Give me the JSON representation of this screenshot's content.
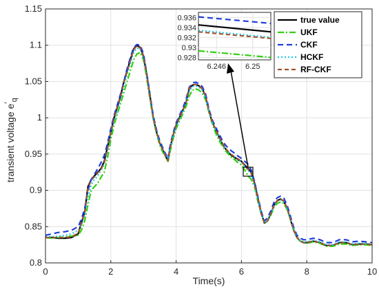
{
  "chart_data": {
    "type": "line",
    "title": "",
    "xlabel": "Time(s)",
    "ylabel": "transient voltage e′q",
    "ylabel_main": "transient voltage e",
    "ylabel_prime": "′",
    "ylabel_sub": "q",
    "xlim": [
      0,
      10
    ],
    "ylim": [
      0.8,
      1.15
    ],
    "xticks": [
      "0",
      "2",
      "4",
      "6",
      "8",
      "10"
    ],
    "yticks": [
      "0.8",
      "0.85",
      "0.9",
      "0.95",
      "1",
      "1.05",
      "1.1",
      "1.15"
    ],
    "grid": true,
    "legend_position": "top-right",
    "x": [
      0,
      0.2,
      0.4,
      0.6,
      0.8,
      1.0,
      1.1,
      1.2,
      1.3,
      1.4,
      1.5,
      1.6,
      1.7,
      1.8,
      1.9,
      2.0,
      2.1,
      2.2,
      2.3,
      2.4,
      2.5,
      2.6,
      2.7,
      2.8,
      2.9,
      3.0,
      3.1,
      3.2,
      3.3,
      3.4,
      3.5,
      3.6,
      3.7,
      3.75,
      3.8,
      3.9,
      4.0,
      4.1,
      4.2,
      4.3,
      4.4,
      4.5,
      4.6,
      4.7,
      4.8,
      4.9,
      5.0,
      5.1,
      5.2,
      5.3,
      5.4,
      5.5,
      5.6,
      5.7,
      5.8,
      5.9,
      6.0,
      6.1,
      6.2,
      6.3,
      6.4,
      6.5,
      6.6,
      6.7,
      6.8,
      6.9,
      7.0,
      7.1,
      7.2,
      7.3,
      7.4,
      7.5,
      7.6,
      7.7,
      7.8,
      7.9,
      8.0,
      8.2,
      8.4,
      8.6,
      8.8,
      9.0,
      9.2,
      9.4,
      9.6,
      9.8,
      10.0
    ],
    "series": [
      {
        "name": "true value",
        "color": "#000000",
        "dash": "",
        "values": [
          0.835,
          0.835,
          0.834,
          0.834,
          0.835,
          0.84,
          0.855,
          0.87,
          0.905,
          0.915,
          0.92,
          0.925,
          0.93,
          0.94,
          0.96,
          0.98,
          1.0,
          1.015,
          1.03,
          1.05,
          1.065,
          1.08,
          1.095,
          1.1,
          1.097,
          1.085,
          1.06,
          1.03,
          1.0,
          0.98,
          0.965,
          0.955,
          0.945,
          0.94,
          0.955,
          0.975,
          0.99,
          1.0,
          1.01,
          1.02,
          1.04,
          1.045,
          1.046,
          1.044,
          1.04,
          1.03,
          1.01,
          0.995,
          0.985,
          0.975,
          0.965,
          0.958,
          0.952,
          0.948,
          0.945,
          0.942,
          0.94,
          0.935,
          0.93,
          0.925,
          0.91,
          0.89,
          0.87,
          0.855,
          0.858,
          0.868,
          0.88,
          0.886,
          0.888,
          0.885,
          0.875,
          0.86,
          0.845,
          0.835,
          0.83,
          0.828,
          0.828,
          0.83,
          0.828,
          0.824,
          0.824,
          0.828,
          0.828,
          0.825,
          0.826,
          0.826,
          0.825
        ]
      },
      {
        "name": "UKF",
        "color": "#2ed00d",
        "dash": "9,3,2,3",
        "values": [
          0.835,
          0.834,
          0.835,
          0.836,
          0.837,
          0.838,
          0.845,
          0.858,
          0.88,
          0.9,
          0.905,
          0.91,
          0.918,
          0.925,
          0.945,
          0.97,
          0.99,
          1.005,
          1.02,
          1.035,
          1.05,
          1.065,
          1.08,
          1.088,
          1.09,
          1.08,
          1.055,
          1.025,
          0.998,
          0.978,
          0.962,
          0.952,
          0.944,
          0.94,
          0.95,
          0.97,
          0.985,
          0.995,
          1.005,
          1.015,
          1.03,
          1.038,
          1.04,
          1.038,
          1.034,
          1.025,
          1.008,
          0.993,
          0.98,
          0.97,
          0.962,
          0.955,
          0.95,
          0.945,
          0.942,
          0.938,
          0.935,
          0.928,
          0.92,
          0.915,
          0.905,
          0.885,
          0.868,
          0.856,
          0.858,
          0.866,
          0.877,
          0.882,
          0.884,
          0.882,
          0.873,
          0.86,
          0.846,
          0.836,
          0.83,
          0.828,
          0.827,
          0.829,
          0.827,
          0.823,
          0.823,
          0.826,
          0.826,
          0.824,
          0.825,
          0.825,
          0.824
        ]
      },
      {
        "name": "CKF",
        "color": "#1f3ddb",
        "dash": "8,5",
        "values": [
          0.838,
          0.84,
          0.842,
          0.843,
          0.845,
          0.85,
          0.86,
          0.875,
          0.9,
          0.915,
          0.922,
          0.93,
          0.938,
          0.948,
          0.965,
          0.985,
          1.003,
          1.018,
          1.033,
          1.05,
          1.068,
          1.083,
          1.097,
          1.101,
          1.1,
          1.088,
          1.062,
          1.032,
          1.003,
          0.983,
          0.968,
          0.958,
          0.948,
          0.943,
          0.958,
          0.978,
          0.993,
          1.003,
          1.013,
          1.025,
          1.042,
          1.048,
          1.049,
          1.047,
          1.043,
          1.033,
          1.013,
          0.998,
          0.988,
          0.979,
          0.97,
          0.963,
          0.958,
          0.954,
          0.951,
          0.947,
          0.944,
          0.94,
          0.936,
          0.928,
          0.912,
          0.892,
          0.872,
          0.858,
          0.862,
          0.872,
          0.884,
          0.89,
          0.892,
          0.889,
          0.879,
          0.864,
          0.849,
          0.838,
          0.834,
          0.832,
          0.832,
          0.834,
          0.832,
          0.828,
          0.828,
          0.832,
          0.832,
          0.829,
          0.83,
          0.829,
          0.828
        ]
      },
      {
        "name": "HCKF",
        "color": "#1ec8e6",
        "dash": "2,3",
        "values": [
          0.836,
          0.836,
          0.837,
          0.838,
          0.84,
          0.845,
          0.852,
          0.865,
          0.89,
          0.908,
          0.915,
          0.92,
          0.928,
          0.936,
          0.955,
          0.978,
          0.995,
          1.01,
          1.025,
          1.043,
          1.06,
          1.075,
          1.09,
          1.096,
          1.095,
          1.083,
          1.058,
          1.028,
          1.0,
          0.98,
          0.965,
          0.955,
          0.946,
          0.942,
          0.954,
          0.974,
          0.988,
          0.998,
          1.008,
          1.02,
          1.036,
          1.043,
          1.044,
          1.042,
          1.038,
          1.028,
          1.01,
          0.995,
          0.984,
          0.974,
          0.965,
          0.958,
          0.953,
          0.949,
          0.946,
          0.942,
          0.939,
          0.933,
          0.928,
          0.922,
          0.907,
          0.888,
          0.869,
          0.856,
          0.859,
          0.868,
          0.879,
          0.885,
          0.887,
          0.884,
          0.875,
          0.861,
          0.846,
          0.836,
          0.831,
          0.829,
          0.829,
          0.831,
          0.829,
          0.825,
          0.825,
          0.829,
          0.829,
          0.826,
          0.827,
          0.827,
          0.826
        ]
      },
      {
        "name": "RF-CKF",
        "color": "#a0522d",
        "dash": "6,4",
        "values": [
          0.835,
          0.835,
          0.835,
          0.835,
          0.836,
          0.841,
          0.854,
          0.869,
          0.903,
          0.914,
          0.919,
          0.924,
          0.929,
          0.938,
          0.958,
          0.979,
          0.999,
          1.014,
          1.029,
          1.049,
          1.064,
          1.079,
          1.094,
          1.099,
          1.096,
          1.084,
          1.059,
          1.029,
          1.0,
          0.98,
          0.965,
          0.955,
          0.945,
          0.941,
          0.955,
          0.975,
          0.99,
          1.0,
          1.01,
          1.021,
          1.04,
          1.045,
          1.046,
          1.044,
          1.04,
          1.03,
          1.01,
          0.995,
          0.985,
          0.975,
          0.966,
          0.959,
          0.953,
          0.949,
          0.946,
          0.943,
          0.94,
          0.934,
          0.929,
          0.924,
          0.909,
          0.889,
          0.869,
          0.855,
          0.858,
          0.868,
          0.88,
          0.886,
          0.888,
          0.885,
          0.875,
          0.86,
          0.845,
          0.835,
          0.83,
          0.828,
          0.828,
          0.83,
          0.828,
          0.824,
          0.824,
          0.828,
          0.828,
          0.825,
          0.826,
          0.826,
          0.825
        ]
      }
    ],
    "inset": {
      "xlim": [
        6.244,
        6.252
      ],
      "ylim": [
        0.9275,
        0.937
      ],
      "xticks": [
        "6.246",
        "6.25"
      ],
      "yticks": [
        "0.928",
        "0.93",
        "0.932",
        "0.934",
        "0.936"
      ],
      "x": [
        6.244,
        6.252
      ],
      "series": [
        {
          "name": "true value",
          "values": [
            0.9345,
            0.9331
          ]
        },
        {
          "name": "UKF",
          "values": [
            0.9293,
            0.928
          ]
        },
        {
          "name": "CKF",
          "values": [
            0.9361,
            0.9348
          ]
        },
        {
          "name": "HCKF",
          "values": [
            0.9334,
            0.932
          ]
        },
        {
          "name": "RF-CKF",
          "values": [
            0.9331,
            0.9318
          ]
        }
      ]
    }
  }
}
